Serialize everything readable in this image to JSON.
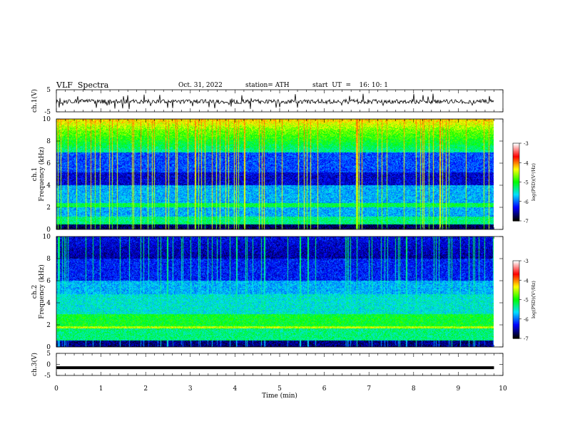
{
  "header": {
    "title": "VLF  Spectra",
    "date": "Oct. 31, 2022",
    "station": "station= ATH",
    "start": "start  UT  =    16: 10: 1"
  },
  "chart_data": {
    "type": "heatmap",
    "x_axis": {
      "label": "Time  (min)",
      "range": [
        0,
        10
      ],
      "ticks": [
        "0",
        "1",
        "2",
        "3",
        "4",
        "5",
        "6",
        "7",
        "8",
        "9",
        "10"
      ]
    },
    "panels": [
      {
        "id": "ch1_waveform",
        "type": "line",
        "ylabel": "ch.1(V)",
        "ylim": [
          -5,
          5
        ],
        "yticks": [
          "5",
          "-5"
        ],
        "color": "#000000"
      },
      {
        "id": "ch1_spectrogram",
        "type": "heatmap",
        "ylabel": "ch.1",
        "ylabel2": "Frequency  (kHz)",
        "ylim": [
          0,
          10
        ],
        "yticks": [
          "0",
          "2",
          "4",
          "6",
          "8",
          "10"
        ]
      },
      {
        "id": "ch2_spectrogram",
        "type": "heatmap",
        "ylabel": "ch.2",
        "ylabel2": "Frequency  (kHz)",
        "ylim": [
          0,
          10
        ],
        "yticks": [
          "0",
          "2",
          "4",
          "6",
          "8",
          "10"
        ]
      },
      {
        "id": "ch3_waveform",
        "type": "line",
        "ylabel": "ch.3(V)",
        "ylim": [
          -5,
          5
        ],
        "yticks": [
          "5",
          "0",
          "-5"
        ],
        "level": -1.5,
        "color": "#000000"
      }
    ],
    "data_end_min": 9.8,
    "colorbar": {
      "label": "log(PSD)(V²/Hz)",
      "range": [
        -7,
        -3
      ],
      "ticks": [
        "-3",
        "-4",
        "-5",
        "-6",
        "-7"
      ],
      "colormap": [
        "#000000",
        "#0000ff",
        "#00e0ff",
        "#00ff00",
        "#ffff00",
        "#ff0000",
        "#ffffff"
      ]
    },
    "colors": {
      "background": "#ffffff",
      "axis": "#000000"
    }
  }
}
